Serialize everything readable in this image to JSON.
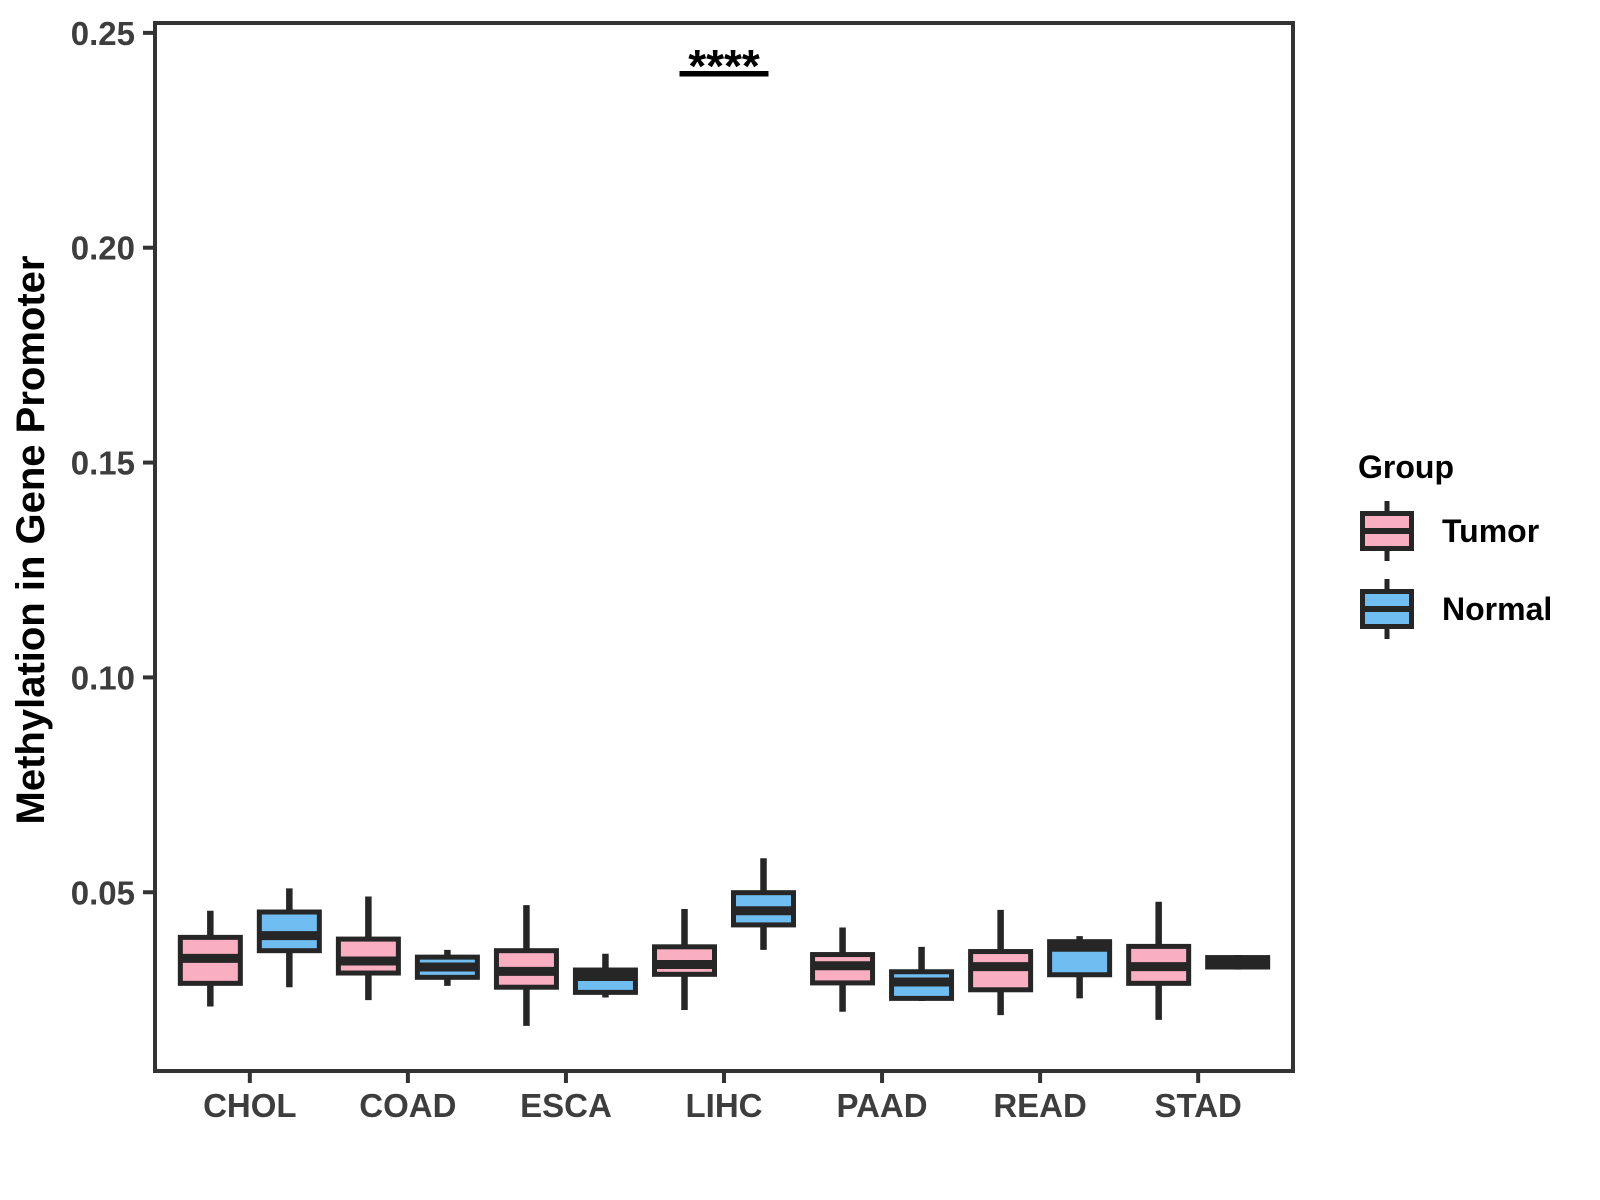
{
  "figure": {
    "background": "#FFFFFF",
    "y_axis_title": "Methylation in Gene Promoter",
    "legend": {
      "title": "Group"
    }
  },
  "chart_data": {
    "type": "grouped_boxplot",
    "title": "",
    "xlabel": "",
    "ylabel": "Methylation in Gene Promoter",
    "categories": [
      "CHOL",
      "COAD",
      "ESCA",
      "LIHC",
      "PAAD",
      "READ",
      "STAD"
    ],
    "ylim": [
      0.0084,
      0.2523
    ],
    "y_ticks": [
      {
        "value": 0.05,
        "label": "0.05"
      },
      {
        "value": 0.1,
        "label": "0.10"
      },
      {
        "value": 0.15,
        "label": "0.15"
      },
      {
        "value": 0.2,
        "label": "0.20"
      },
      {
        "value": 0.25,
        "label": "0.25"
      }
    ],
    "grid": false,
    "legend_position": "right",
    "series": [
      {
        "name": "Tumor",
        "color": "#FAAEC1",
        "boxes": [
          {
            "min": 0.0234,
            "q1": 0.0288,
            "median": 0.0346,
            "q3": 0.0395,
            "max": 0.0457
          },
          {
            "min": 0.0249,
            "q1": 0.0312,
            "median": 0.034,
            "q3": 0.0391,
            "max": 0.049
          },
          {
            "min": 0.0189,
            "q1": 0.0279,
            "median": 0.0316,
            "q3": 0.0364,
            "max": 0.047
          },
          {
            "min": 0.0226,
            "q1": 0.0309,
            "median": 0.0332,
            "q3": 0.0373,
            "max": 0.0461
          },
          {
            "min": 0.0222,
            "q1": 0.0289,
            "median": 0.0329,
            "q3": 0.0355,
            "max": 0.0418
          },
          {
            "min": 0.0214,
            "q1": 0.0273,
            "median": 0.0327,
            "q3": 0.0362,
            "max": 0.0459
          },
          {
            "min": 0.0203,
            "q1": 0.0288,
            "median": 0.0327,
            "q3": 0.0374,
            "max": 0.0478
          }
        ]
      },
      {
        "name": "Normal",
        "color": "#70BDF2",
        "boxes": [
          {
            "min": 0.0279,
            "q1": 0.0364,
            "median": 0.0399,
            "q3": 0.0454,
            "max": 0.0509
          },
          {
            "min": 0.0282,
            "q1": 0.0302,
            "median": 0.0326,
            "q3": 0.0349,
            "max": 0.0366
          },
          {
            "min": 0.0255,
            "q1": 0.0267,
            "median": 0.0304,
            "q3": 0.0319,
            "max": 0.0357
          },
          {
            "min": 0.0366,
            "q1": 0.0424,
            "median": 0.0457,
            "q3": 0.0499,
            "max": 0.0579
          },
          {
            "min": 0.0247,
            "q1": 0.0253,
            "median": 0.0291,
            "q3": 0.0315,
            "max": 0.0373
          },
          {
            "min": 0.0253,
            "q1": 0.0308,
            "median": 0.0372,
            "q3": 0.0385,
            "max": 0.0398
          },
          {
            "min": 0.032,
            "q1": 0.0326,
            "median": 0.0336,
            "q3": 0.0348,
            "max": 0.0354
          }
        ]
      }
    ],
    "significance": [
      {
        "category": "LIHC",
        "label": "****"
      }
    ],
    "style": {
      "box_border": "#262626",
      "panel_border": "#333333",
      "tick_label_color": "#3D3D3D",
      "annotation_color": "#000000"
    }
  }
}
